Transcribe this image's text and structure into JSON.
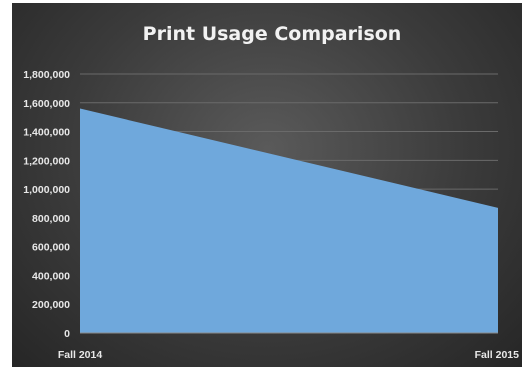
{
  "chart_data": {
    "type": "area",
    "title": "Print Usage Comparison",
    "categories": [
      "Fall 2014",
      "Fall 2015"
    ],
    "series": [
      {
        "values": [
          1560000,
          870000
        ]
      }
    ],
    "ylim": [
      0,
      1800000
    ],
    "yticks": [
      "0",
      "200,000",
      "400,000",
      "600,000",
      "800,000",
      "1,000,000",
      "1,200,000",
      "1,400,000",
      "1,600,000",
      "1,800,000"
    ],
    "grid": true,
    "legend": "none",
    "colors": {
      "area": "#6fa8dc",
      "background": "#3b3b3b"
    }
  }
}
